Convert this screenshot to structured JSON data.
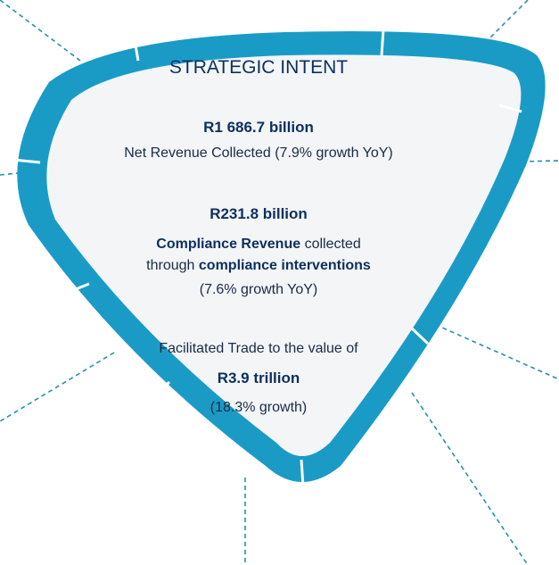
{
  "title": "STRATEGIC INTENT",
  "items": [
    {
      "figure": "R1 686.7 billion",
      "description": "Net Revenue Collected (7.9% growth YoY)"
    },
    {
      "figure": "R231.8 billion",
      "parts": [
        "Compliance Revenue",
        "collected",
        "through",
        "compliance interventions"
      ],
      "note": "(7.6% growth YoY)"
    },
    {
      "lead": "Facilitated Trade to the value of",
      "figure": "R3.9 trillion",
      "note": "(18.3% growth)"
    }
  ]
}
